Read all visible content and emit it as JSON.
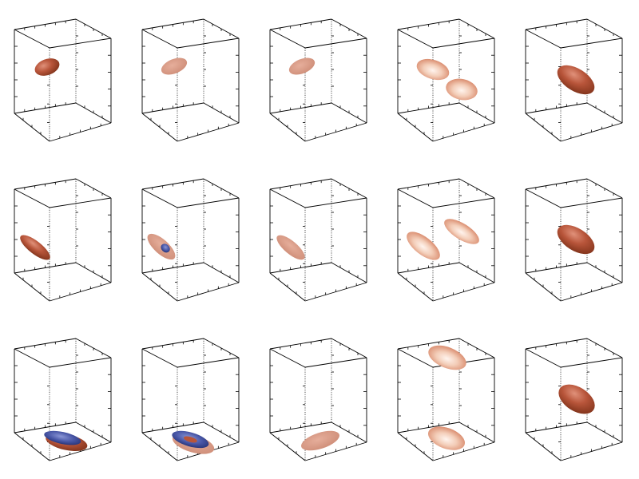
{
  "figure": {
    "background": "#ffffff",
    "rows": 3,
    "cols": 5,
    "colors": {
      "frame": "#000000",
      "copper_dark": "#8a3a1f",
      "copper_mid": "#b8553a",
      "copper_light": "#f3d2c0",
      "pale_fill": "#d89a86",
      "blue_dark": "#1e2a6a",
      "blue_mid": "#5a6bb8"
    }
  },
  "panels": [
    {
      "row": 0,
      "col": 0,
      "blobs": [
        {
          "shade": "dark-copper"
        }
      ]
    },
    {
      "row": 0,
      "col": 1,
      "blobs": [
        {
          "shade": "pale-copper"
        }
      ]
    },
    {
      "row": 0,
      "col": 2,
      "blobs": [
        {
          "shade": "pale-copper"
        }
      ]
    },
    {
      "row": 0,
      "col": 3,
      "blobs": [
        {
          "shade": "glossy-copper"
        },
        {
          "shade": "glossy-copper"
        }
      ]
    },
    {
      "row": 0,
      "col": 4,
      "blobs": [
        {
          "shade": "dark-copper"
        }
      ]
    },
    {
      "row": 1,
      "col": 0,
      "blobs": [
        {
          "shade": "dark-copper"
        }
      ]
    },
    {
      "row": 1,
      "col": 1,
      "blobs": [
        {
          "shade": "pale-copper-with-blue-core"
        }
      ]
    },
    {
      "row": 1,
      "col": 2,
      "blobs": [
        {
          "shade": "pale-copper"
        }
      ]
    },
    {
      "row": 1,
      "col": 3,
      "blobs": [
        {
          "shade": "glossy-copper"
        },
        {
          "shade": "glossy-copper"
        }
      ]
    },
    {
      "row": 1,
      "col": 4,
      "blobs": [
        {
          "shade": "dark-copper"
        }
      ]
    },
    {
      "row": 2,
      "col": 0,
      "blobs": [
        {
          "shade": "blue-on-copper"
        }
      ]
    },
    {
      "row": 2,
      "col": 1,
      "blobs": [
        {
          "shade": "blue-ring-on-copper"
        }
      ]
    },
    {
      "row": 2,
      "col": 2,
      "blobs": [
        {
          "shade": "pale-copper"
        }
      ]
    },
    {
      "row": 2,
      "col": 3,
      "blobs": [
        {
          "shade": "glossy-copper"
        },
        {
          "shade": "glossy-copper"
        }
      ]
    },
    {
      "row": 2,
      "col": 4,
      "blobs": [
        {
          "shade": "dark-copper"
        }
      ]
    }
  ]
}
